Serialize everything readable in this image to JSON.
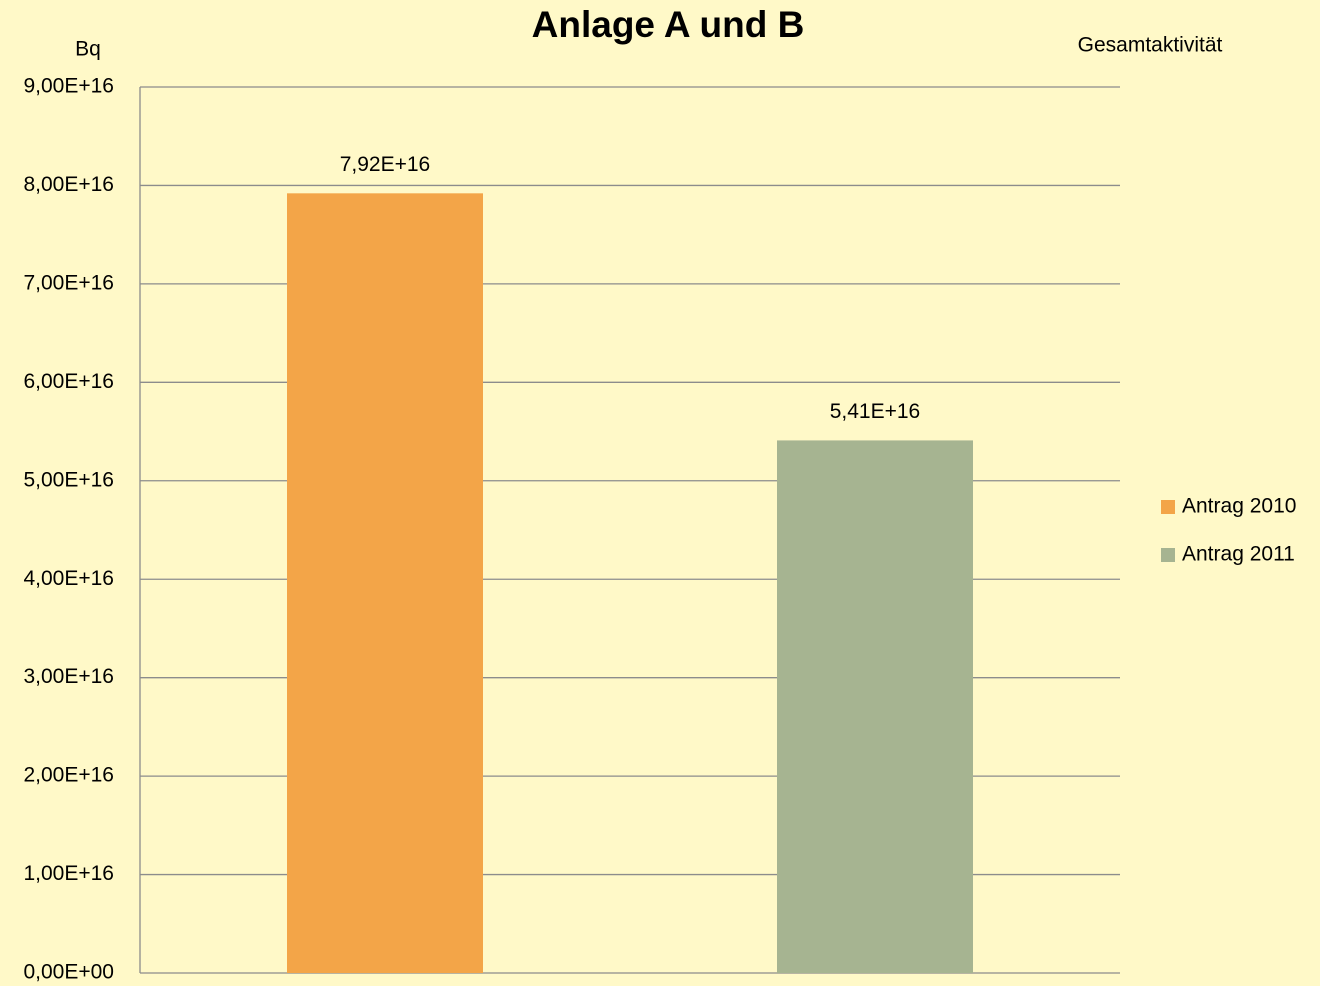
{
  "chart_data": {
    "type": "bar",
    "title": "Anlage A und B",
    "y_label": "Bq",
    "annotation": "Gesamtaktivität",
    "categories": [
      null
    ],
    "series": [
      {
        "name": "Antrag 2010",
        "color": "#f3a548",
        "values": [
          7.92e+16
        ],
        "value_labels": [
          "7,92E+16"
        ]
      },
      {
        "name": "Antrag 2011",
        "color": "#a6b491",
        "values": [
          5.41e+16
        ],
        "value_labels": [
          "5,41E+16"
        ]
      }
    ],
    "ylim": [
      0,
      9e+16
    ],
    "yticks": [
      {
        "value": 0,
        "label": "0,00E+00"
      },
      {
        "value": 1e+16,
        "label": "1,00E+16"
      },
      {
        "value": 2e+16,
        "label": "2,00E+16"
      },
      {
        "value": 3e+16,
        "label": "3,00E+16"
      },
      {
        "value": 4e+16,
        "label": "4,00E+16"
      },
      {
        "value": 5e+16,
        "label": "5,00E+16"
      },
      {
        "value": 6e+16,
        "label": "6,00E+16"
      },
      {
        "value": 7e+16,
        "label": "7,00E+16"
      },
      {
        "value": 8e+16,
        "label": "8,00E+16"
      },
      {
        "value": 9e+16,
        "label": "9,00E+16"
      }
    ],
    "grid": true,
    "legend": "right"
  }
}
